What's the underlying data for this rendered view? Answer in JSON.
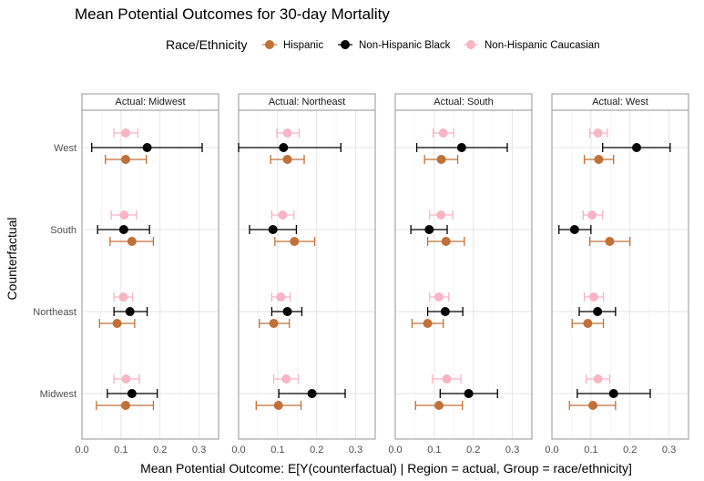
{
  "chart_data": {
    "type": "scatter",
    "title": "Mean Potential Outcomes for 30-day Mortality",
    "xlabel": "Mean Potential Outcome: E[Y(counterfactual) | Region = actual, Group = race/ethnicity]",
    "ylabel": "Counterfactual",
    "xlim": [
      0,
      0.35
    ],
    "x_ticks": [
      0.0,
      0.1,
      0.2,
      0.3
    ],
    "x_tick_labels": [
      "0.0",
      "0.1",
      "0.2",
      "0.3"
    ],
    "y_categories": [
      "Midwest",
      "Northeast",
      "South",
      "West"
    ],
    "legend": {
      "title": "Race/Ethnicity",
      "position": "top",
      "entries": [
        {
          "label": "Hispanic",
          "color": "#C07038"
        },
        {
          "label": "Non-Hispanic Black",
          "color": "#000000"
        },
        {
          "label": "Non-Hispanic Caucasian",
          "color": "#F7B5C5"
        }
      ]
    },
    "panels": [
      {
        "label": "Actual: Midwest",
        "series": [
          {
            "group": "Hispanic",
            "points": [
              {
                "category": "Midwest",
                "mean": 0.112,
                "lo": 0.037,
                "hi": 0.183
              },
              {
                "category": "Northeast",
                "mean": 0.09,
                "lo": 0.045,
                "hi": 0.135
              },
              {
                "category": "South",
                "mean": 0.128,
                "lo": 0.072,
                "hi": 0.183
              },
              {
                "category": "West",
                "mean": 0.112,
                "lo": 0.06,
                "hi": 0.165
              }
            ]
          },
          {
            "group": "Non-Hispanic Black",
            "points": [
              {
                "category": "Midwest",
                "mean": 0.128,
                "lo": 0.065,
                "hi": 0.193
              },
              {
                "category": "Northeast",
                "mean": 0.123,
                "lo": 0.082,
                "hi": 0.167
              },
              {
                "category": "South",
                "mean": 0.107,
                "lo": 0.04,
                "hi": 0.173
              },
              {
                "category": "West",
                "mean": 0.167,
                "lo": 0.025,
                "hi": 0.308
              }
            ]
          },
          {
            "group": "Non-Hispanic Caucasian",
            "points": [
              {
                "category": "Midwest",
                "mean": 0.113,
                "lo": 0.082,
                "hi": 0.147
              },
              {
                "category": "Northeast",
                "mean": 0.106,
                "lo": 0.082,
                "hi": 0.13
              },
              {
                "category": "South",
                "mean": 0.108,
                "lo": 0.075,
                "hi": 0.14
              },
              {
                "category": "West",
                "mean": 0.112,
                "lo": 0.082,
                "hi": 0.143
              }
            ]
          }
        ]
      },
      {
        "label": "Actual: Northeast",
        "series": [
          {
            "group": "Hispanic",
            "points": [
              {
                "category": "Midwest",
                "mean": 0.102,
                "lo": 0.045,
                "hi": 0.16
              },
              {
                "category": "Northeast",
                "mean": 0.09,
                "lo": 0.053,
                "hi": 0.13
              },
              {
                "category": "South",
                "mean": 0.143,
                "lo": 0.093,
                "hi": 0.195
              },
              {
                "category": "West",
                "mean": 0.125,
                "lo": 0.082,
                "hi": 0.168
              }
            ]
          },
          {
            "group": "Non-Hispanic Black",
            "points": [
              {
                "category": "Midwest",
                "mean": 0.188,
                "lo": 0.103,
                "hi": 0.273
              },
              {
                "category": "Northeast",
                "mean": 0.125,
                "lo": 0.085,
                "hi": 0.162
              },
              {
                "category": "South",
                "mean": 0.088,
                "lo": 0.028,
                "hi": 0.148
              },
              {
                "category": "West",
                "mean": 0.115,
                "lo": 0.0,
                "hi": 0.262
              }
            ]
          },
          {
            "group": "Non-Hispanic Caucasian",
            "points": [
              {
                "category": "Midwest",
                "mean": 0.122,
                "lo": 0.09,
                "hi": 0.153
              },
              {
                "category": "Northeast",
                "mean": 0.108,
                "lo": 0.085,
                "hi": 0.132
              },
              {
                "category": "South",
                "mean": 0.113,
                "lo": 0.085,
                "hi": 0.142
              },
              {
                "category": "West",
                "mean": 0.125,
                "lo": 0.098,
                "hi": 0.155
              }
            ]
          }
        ]
      },
      {
        "label": "Actual: South",
        "series": [
          {
            "group": "Hispanic",
            "points": [
              {
                "category": "Midwest",
                "mean": 0.112,
                "lo": 0.052,
                "hi": 0.172
              },
              {
                "category": "Northeast",
                "mean": 0.083,
                "lo": 0.043,
                "hi": 0.123
              },
              {
                "category": "South",
                "mean": 0.13,
                "lo": 0.083,
                "hi": 0.177
              },
              {
                "category": "West",
                "mean": 0.118,
                "lo": 0.075,
                "hi": 0.16
              }
            ]
          },
          {
            "group": "Non-Hispanic Black",
            "points": [
              {
                "category": "Midwest",
                "mean": 0.188,
                "lo": 0.115,
                "hi": 0.262
              },
              {
                "category": "Northeast",
                "mean": 0.128,
                "lo": 0.083,
                "hi": 0.173
              },
              {
                "category": "South",
                "mean": 0.087,
                "lo": 0.04,
                "hi": 0.133
              },
              {
                "category": "West",
                "mean": 0.17,
                "lo": 0.055,
                "hi": 0.287
              }
            ]
          },
          {
            "group": "Non-Hispanic Caucasian",
            "points": [
              {
                "category": "Midwest",
                "mean": 0.132,
                "lo": 0.095,
                "hi": 0.168
              },
              {
                "category": "Northeast",
                "mean": 0.112,
                "lo": 0.088,
                "hi": 0.137
              },
              {
                "category": "South",
                "mean": 0.117,
                "lo": 0.088,
                "hi": 0.147
              },
              {
                "category": "West",
                "mean": 0.123,
                "lo": 0.097,
                "hi": 0.15
              }
            ]
          }
        ]
      },
      {
        "label": "Actual: West",
        "series": [
          {
            "group": "Hispanic",
            "points": [
              {
                "category": "Midwest",
                "mean": 0.105,
                "lo": 0.045,
                "hi": 0.163
              },
              {
                "category": "Northeast",
                "mean": 0.092,
                "lo": 0.052,
                "hi": 0.132
              },
              {
                "category": "South",
                "mean": 0.148,
                "lo": 0.097,
                "hi": 0.2
              },
              {
                "category": "West",
                "mean": 0.12,
                "lo": 0.083,
                "hi": 0.158
              }
            ]
          },
          {
            "group": "Non-Hispanic Black",
            "points": [
              {
                "category": "Midwest",
                "mean": 0.158,
                "lo": 0.065,
                "hi": 0.252
              },
              {
                "category": "Northeast",
                "mean": 0.117,
                "lo": 0.07,
                "hi": 0.163
              },
              {
                "category": "South",
                "mean": 0.058,
                "lo": 0.018,
                "hi": 0.1
              },
              {
                "category": "West",
                "mean": 0.217,
                "lo": 0.13,
                "hi": 0.303
              }
            ]
          },
          {
            "group": "Non-Hispanic Caucasian",
            "points": [
              {
                "category": "Midwest",
                "mean": 0.118,
                "lo": 0.088,
                "hi": 0.148
              },
              {
                "category": "Northeast",
                "mean": 0.107,
                "lo": 0.083,
                "hi": 0.132
              },
              {
                "category": "South",
                "mean": 0.103,
                "lo": 0.08,
                "hi": 0.13
              },
              {
                "category": "West",
                "mean": 0.118,
                "lo": 0.097,
                "hi": 0.142
              }
            ]
          }
        ]
      }
    ]
  }
}
